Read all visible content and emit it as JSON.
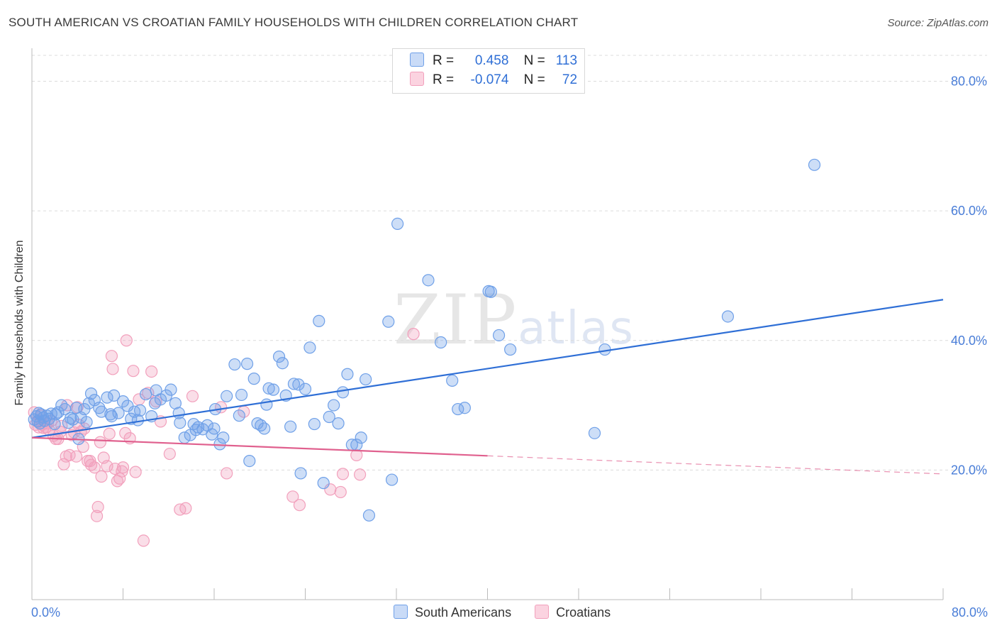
{
  "title": "SOUTH AMERICAN VS CROATIAN FAMILY HOUSEHOLDS WITH CHILDREN CORRELATION CHART",
  "source": "Source: ZipAtlas.com",
  "watermark": {
    "zip": "ZIP",
    "atlas": "atlas"
  },
  "legend": {
    "rows": [
      {
        "r_label": "R =",
        "r_value": "0.458",
        "n_label": "N =",
        "n_value": "113",
        "color": "#6fa0e8"
      },
      {
        "r_label": "R =",
        "r_value": "-0.074",
        "n_label": "N =",
        "n_value": "72",
        "color": "#f2a0bc"
      }
    ]
  },
  "bottom_legend": [
    {
      "label": "South Americans",
      "color": "#6fa0e8"
    },
    {
      "label": "Croatians",
      "color": "#f2a0bc"
    }
  ],
  "chart_data": {
    "type": "scatter",
    "title": "SOUTH AMERICAN VS CROATIAN FAMILY HOUSEHOLDS WITH CHILDREN CORRELATION CHART",
    "xlabel": "",
    "ylabel": "Family Households with Children",
    "xlim": [
      0,
      80
    ],
    "ylim": [
      0,
      84
    ],
    "x_tick_labels": [
      "0.0%",
      "80.0%"
    ],
    "y_ticks": [
      20,
      40,
      60,
      80
    ],
    "y_tick_labels": [
      "20.0%",
      "40.0%",
      "60.0%",
      "80.0%"
    ],
    "grid": true,
    "colors": {
      "south_americans": "#6fa0e8",
      "croatians": "#f2a0bc",
      "south_line": "#2f6fd6",
      "croatian_line": "#e0608e"
    },
    "series": [
      {
        "name": "South Americans",
        "points": [
          [
            0.2,
            27.8
          ],
          [
            0.4,
            28.3
          ],
          [
            0.5,
            27.5
          ],
          [
            0.6,
            28.8
          ],
          [
            0.7,
            27.2
          ],
          [
            0.8,
            28.6
          ],
          [
            1.0,
            28.1
          ],
          [
            1.1,
            27.6
          ],
          [
            1.3,
            28.4
          ],
          [
            1.5,
            27.9
          ],
          [
            1.7,
            28.7
          ],
          [
            2.0,
            27.1
          ],
          [
            2.3,
            28.9
          ],
          [
            2.6,
            30.0
          ],
          [
            2.9,
            29.4
          ],
          [
            3.2,
            27.3
          ],
          [
            3.4,
            28.0
          ],
          [
            3.6,
            27.8
          ],
          [
            3.9,
            29.6
          ],
          [
            4.1,
            24.8
          ],
          [
            4.3,
            28.1
          ],
          [
            4.6,
            29.4
          ],
          [
            5.0,
            30.3
          ],
          [
            5.2,
            31.8
          ],
          [
            5.5,
            30.8
          ],
          [
            5.9,
            29.6
          ],
          [
            6.1,
            29.0
          ],
          [
            6.6,
            31.2
          ],
          [
            7.0,
            28.3
          ],
          [
            7.2,
            31.5
          ],
          [
            7.6,
            28.8
          ],
          [
            8.0,
            30.6
          ],
          [
            8.4,
            29.9
          ],
          [
            8.7,
            27.9
          ],
          [
            9.0,
            29.0
          ],
          [
            9.5,
            29.2
          ],
          [
            10.0,
            31.7
          ],
          [
            10.5,
            28.3
          ],
          [
            10.9,
            32.3
          ],
          [
            11.3,
            30.9
          ],
          [
            11.8,
            31.5
          ],
          [
            12.2,
            32.4
          ],
          [
            12.6,
            30.3
          ],
          [
            13.0,
            27.3
          ],
          [
            13.4,
            25.0
          ],
          [
            13.9,
            25.4
          ],
          [
            14.2,
            27.1
          ],
          [
            14.6,
            26.6
          ],
          [
            15.0,
            26.3
          ],
          [
            15.4,
            26.9
          ],
          [
            15.8,
            25.5
          ],
          [
            16.1,
            29.4
          ],
          [
            16.5,
            24.0
          ],
          [
            16.8,
            25.0
          ],
          [
            17.1,
            31.4
          ],
          [
            17.8,
            36.3
          ],
          [
            18.4,
            31.6
          ],
          [
            18.9,
            36.4
          ],
          [
            19.1,
            21.4
          ],
          [
            19.5,
            34.1
          ],
          [
            19.8,
            27.2
          ],
          [
            20.1,
            26.9
          ],
          [
            20.4,
            26.4
          ],
          [
            20.8,
            32.6
          ],
          [
            21.2,
            32.4
          ],
          [
            21.7,
            37.5
          ],
          [
            22.0,
            36.5
          ],
          [
            22.3,
            31.5
          ],
          [
            22.7,
            26.7
          ],
          [
            23.0,
            33.3
          ],
          [
            23.4,
            33.2
          ],
          [
            23.6,
            19.5
          ],
          [
            24.0,
            32.5
          ],
          [
            24.4,
            38.9
          ],
          [
            24.8,
            27.1
          ],
          [
            25.2,
            43.0
          ],
          [
            25.6,
            18.0
          ],
          [
            26.1,
            28.2
          ],
          [
            26.5,
            30.0
          ],
          [
            26.9,
            27.2
          ],
          [
            27.3,
            32.0
          ],
          [
            27.7,
            34.8
          ],
          [
            28.1,
            23.9
          ],
          [
            28.5,
            23.9
          ],
          [
            28.9,
            25.0
          ],
          [
            29.3,
            34.0
          ],
          [
            29.6,
            13.0
          ],
          [
            31.3,
            42.9
          ],
          [
            31.6,
            18.5
          ],
          [
            32.1,
            58.0
          ],
          [
            34.8,
            49.3
          ],
          [
            35.9,
            39.7
          ],
          [
            36.9,
            33.8
          ],
          [
            37.4,
            29.4
          ],
          [
            38.0,
            29.6
          ],
          [
            40.1,
            47.6
          ],
          [
            40.3,
            47.5
          ],
          [
            41.0,
            40.8
          ],
          [
            42.0,
            38.6
          ],
          [
            49.4,
            25.7
          ],
          [
            50.3,
            38.6
          ],
          [
            61.1,
            43.7
          ],
          [
            68.7,
            67.1
          ],
          [
            14.4,
            26.2
          ],
          [
            6.9,
            28.6
          ],
          [
            10.8,
            30.3
          ],
          [
            9.3,
            27.7
          ],
          [
            12.9,
            28.8
          ],
          [
            16.0,
            26.4
          ],
          [
            20.6,
            30.1
          ],
          [
            18.2,
            28.4
          ],
          [
            4.8,
            27.4
          ],
          [
            2.1,
            28.6
          ]
        ]
      },
      {
        "name": "Croatians",
        "points": [
          [
            0.2,
            28.9
          ],
          [
            0.3,
            27.0
          ],
          [
            0.5,
            27.6
          ],
          [
            0.6,
            26.6
          ],
          [
            0.8,
            28.4
          ],
          [
            0.9,
            27.0
          ],
          [
            1.0,
            26.5
          ],
          [
            1.2,
            26.6
          ],
          [
            1.4,
            27.2
          ],
          [
            1.5,
            26.2
          ],
          [
            1.7,
            27.6
          ],
          [
            1.9,
            25.3
          ],
          [
            2.1,
            24.8
          ],
          [
            2.3,
            24.8
          ],
          [
            2.5,
            25.9
          ],
          [
            2.6,
            26.8
          ],
          [
            2.8,
            20.9
          ],
          [
            3.0,
            22.1
          ],
          [
            3.1,
            30.0
          ],
          [
            3.3,
            22.3
          ],
          [
            3.5,
            25.4
          ],
          [
            3.7,
            25.8
          ],
          [
            3.9,
            22.1
          ],
          [
            4.0,
            29.7
          ],
          [
            4.1,
            27.0
          ],
          [
            4.3,
            25.9
          ],
          [
            4.5,
            23.6
          ],
          [
            4.6,
            26.4
          ],
          [
            4.9,
            21.4
          ],
          [
            5.1,
            21.4
          ],
          [
            5.2,
            20.8
          ],
          [
            5.5,
            20.4
          ],
          [
            5.7,
            12.9
          ],
          [
            5.8,
            14.3
          ],
          [
            6.0,
            24.3
          ],
          [
            6.1,
            19.0
          ],
          [
            6.3,
            21.9
          ],
          [
            6.6,
            20.6
          ],
          [
            6.8,
            25.6
          ],
          [
            7.0,
            37.6
          ],
          [
            7.1,
            35.6
          ],
          [
            7.3,
            20.2
          ],
          [
            7.5,
            18.3
          ],
          [
            7.7,
            18.7
          ],
          [
            7.9,
            19.8
          ],
          [
            8.0,
            20.4
          ],
          [
            8.2,
            25.7
          ],
          [
            8.3,
            40.0
          ],
          [
            8.6,
            24.9
          ],
          [
            8.9,
            35.3
          ],
          [
            9.1,
            19.7
          ],
          [
            9.4,
            30.9
          ],
          [
            9.8,
            9.1
          ],
          [
            10.2,
            31.9
          ],
          [
            10.5,
            35.2
          ],
          [
            10.9,
            30.6
          ],
          [
            11.3,
            27.5
          ],
          [
            12.1,
            22.5
          ],
          [
            13.0,
            13.9
          ],
          [
            13.5,
            14.1
          ],
          [
            14.1,
            31.4
          ],
          [
            16.6,
            29.7
          ],
          [
            17.1,
            19.5
          ],
          [
            18.6,
            29.0
          ],
          [
            22.9,
            15.9
          ],
          [
            23.5,
            14.6
          ],
          [
            26.2,
            17.0
          ],
          [
            27.1,
            16.6
          ],
          [
            27.3,
            19.4
          ],
          [
            28.5,
            22.3
          ],
          [
            28.8,
            19.3
          ],
          [
            33.5,
            41.0
          ]
        ]
      }
    ],
    "trendlines": [
      {
        "name": "South Americans",
        "x": [
          0,
          80
        ],
        "y": [
          25.0,
          46.3
        ],
        "style": "solid"
      },
      {
        "name": "Croatians",
        "x": [
          0,
          40
        ],
        "y": [
          25.0,
          22.2
        ],
        "style": "solid"
      },
      {
        "name": "Croatians",
        "x": [
          40,
          80
        ],
        "y": [
          22.2,
          19.4
        ],
        "style": "dashed"
      }
    ]
  }
}
